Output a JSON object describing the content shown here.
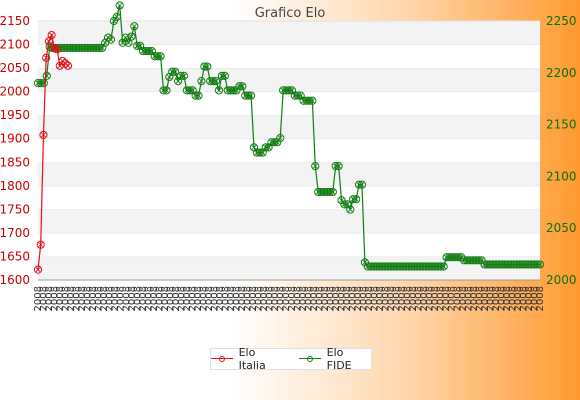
{
  "chart_data": {
    "type": "line",
    "title": "Grafico Elo",
    "left_axis": {
      "min": 1600,
      "max": 2150,
      "ticks": [
        1600,
        1650,
        1700,
        1750,
        1800,
        1850,
        1900,
        1950,
        2000,
        2050,
        2100,
        2150
      ],
      "color": "#cc0000"
    },
    "right_axis": {
      "min": 2000,
      "max": 2250,
      "ticks": [
        2000,
        2050,
        2100,
        2150,
        2200,
        2250
      ],
      "color": "#0a6e0a"
    },
    "grid": true,
    "x_tick_label": "2008",
    "legend_position": "bottom",
    "series": [
      {
        "name": "Elo Italia",
        "axis": "left",
        "color": "#e0101a",
        "values": [
          1622,
          1675,
          1908,
          2072,
          2107,
          2120,
          2092,
          2090,
          2055,
          2065,
          2060,
          2055
        ]
      },
      {
        "name": "Elo FIDE",
        "axis": "right",
        "color": "#137d13",
        "values": [
          2190,
          2190,
          2190,
          2197,
          2225,
          2224,
          2224,
          2224,
          2224,
          2224,
          2224,
          2224,
          2224,
          2224,
          2224,
          2224,
          2224,
          2224,
          2224,
          2224,
          2224,
          2224,
          2224,
          2229,
          2234,
          2232,
          2250,
          2254,
          2265,
          2229,
          2234,
          2229,
          2235,
          2245,
          2226,
          2226,
          2221,
          2221,
          2221,
          2221,
          2216,
          2216,
          2216,
          2183,
          2183,
          2196,
          2201,
          2201,
          2192,
          2197,
          2197,
          2183,
          2183,
          2183,
          2178,
          2178,
          2192,
          2206,
          2206,
          2192,
          2192,
          2192,
          2183,
          2197,
          2197,
          2183,
          2183,
          2183,
          2183,
          2187,
          2187,
          2178,
          2178,
          2178,
          2128,
          2123,
          2123,
          2123,
          2128,
          2128,
          2133,
          2133,
          2133,
          2137,
          2183,
          2183,
          2183,
          2183,
          2178,
          2178,
          2178,
          2173,
          2173,
          2173,
          2173,
          2110,
          2085,
          2085,
          2085,
          2085,
          2085,
          2085,
          2110,
          2110,
          2077,
          2073,
          2073,
          2068,
          2078,
          2078,
          2092,
          2092,
          2017,
          2013,
          2013,
          2013,
          2013,
          2013,
          2013,
          2013,
          2013,
          2013,
          2013,
          2013,
          2013,
          2013,
          2013,
          2013,
          2013,
          2013,
          2013,
          2013,
          2013,
          2013,
          2013,
          2013,
          2013,
          2013,
          2013,
          2013,
          2022,
          2022,
          2022,
          2022,
          2022,
          2022,
          2019,
          2019,
          2019,
          2019,
          2019,
          2019,
          2019,
          2015,
          2015,
          2015,
          2015,
          2015,
          2015,
          2015,
          2015,
          2015,
          2015,
          2015,
          2015,
          2015,
          2015,
          2015,
          2015,
          2015,
          2015,
          2015,
          2015
        ]
      }
    ]
  }
}
